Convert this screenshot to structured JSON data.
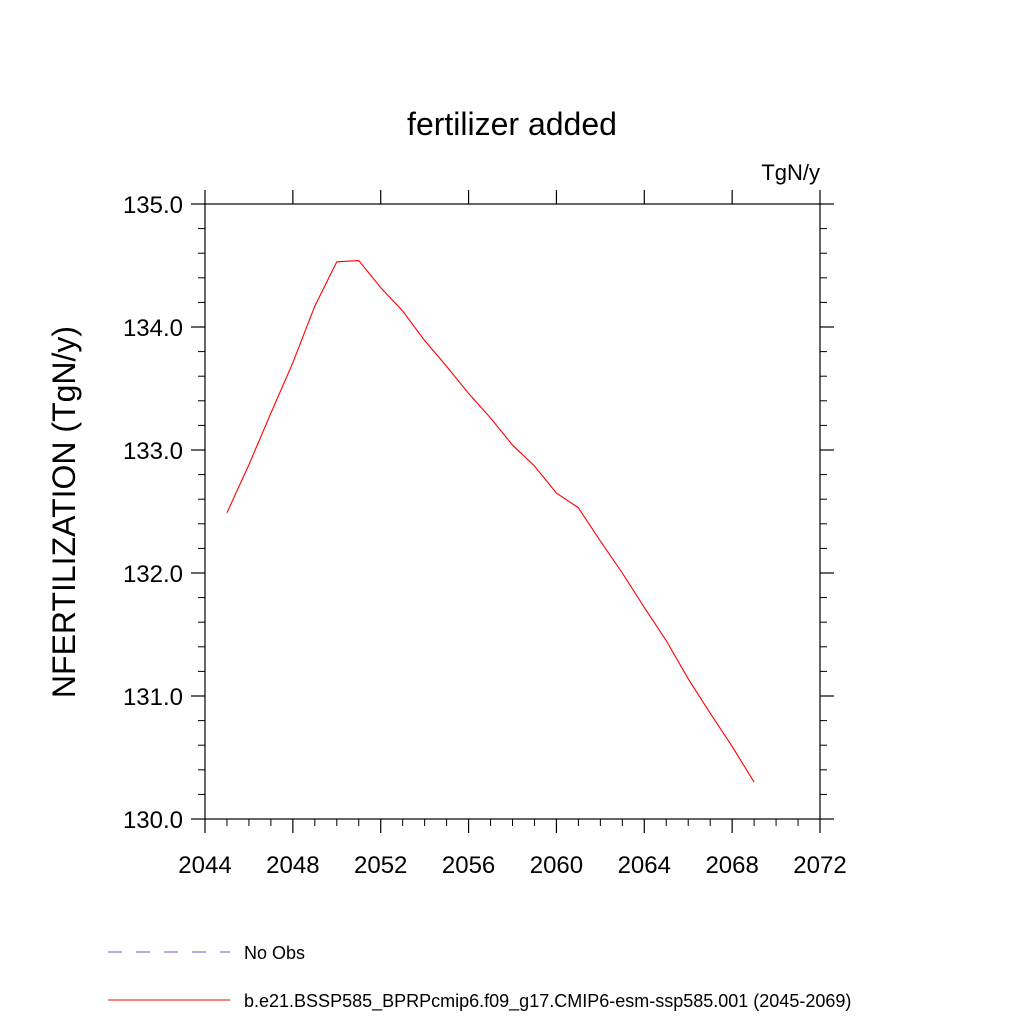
{
  "chart_data": {
    "type": "line",
    "title": "fertilizer added",
    "units_label": "TgN/y",
    "xlabel": "",
    "ylabel": "NFERTILIZATION  (TgN/y)",
    "xlim": [
      2044,
      2072
    ],
    "ylim": [
      130.0,
      135.0
    ],
    "x_ticks": [
      2044,
      2048,
      2052,
      2056,
      2060,
      2064,
      2068,
      2072
    ],
    "x_tick_labels": [
      "2044",
      "2048",
      "2052",
      "2056",
      "2060",
      "2064",
      "2068",
      "2072"
    ],
    "y_ticks": [
      130.0,
      131.0,
      132.0,
      133.0,
      134.0,
      135.0
    ],
    "y_tick_labels": [
      "130.0",
      "131.0",
      "132.0",
      "133.0",
      "134.0",
      "135.0"
    ],
    "grid": false,
    "legend_position": "bottom",
    "series": [
      {
        "name": "b.e21.BSSP585_BPRPcmip6.f09_g17.CMIP6-esm-ssp585.001 (2045-2069)",
        "color": "#ff0000",
        "style": "solid",
        "x": [
          2045,
          2046,
          2047,
          2048,
          2049,
          2050,
          2051,
          2052,
          2053,
          2054,
          2055,
          2056,
          2057,
          2058,
          2059,
          2060,
          2061,
          2062,
          2063,
          2064,
          2065,
          2066,
          2067,
          2068,
          2069
        ],
        "y": [
          132.49,
          132.88,
          133.3,
          133.71,
          134.17,
          134.53,
          134.54,
          134.32,
          134.13,
          133.89,
          133.68,
          133.46,
          133.26,
          133.04,
          132.87,
          132.65,
          132.53,
          132.26,
          132.0,
          131.72,
          131.45,
          131.14,
          130.86,
          130.59,
          130.3
        ]
      }
    ],
    "legend": [
      {
        "label": "No Obs",
        "color": "#6a5acd",
        "style": "dashed"
      },
      {
        "label": "b.e21.BSSP585_BPRPcmip6.f09_g17.CMIP6-esm-ssp585.001 (2045-2069)",
        "color": "#ff0000",
        "style": "solid"
      }
    ]
  }
}
